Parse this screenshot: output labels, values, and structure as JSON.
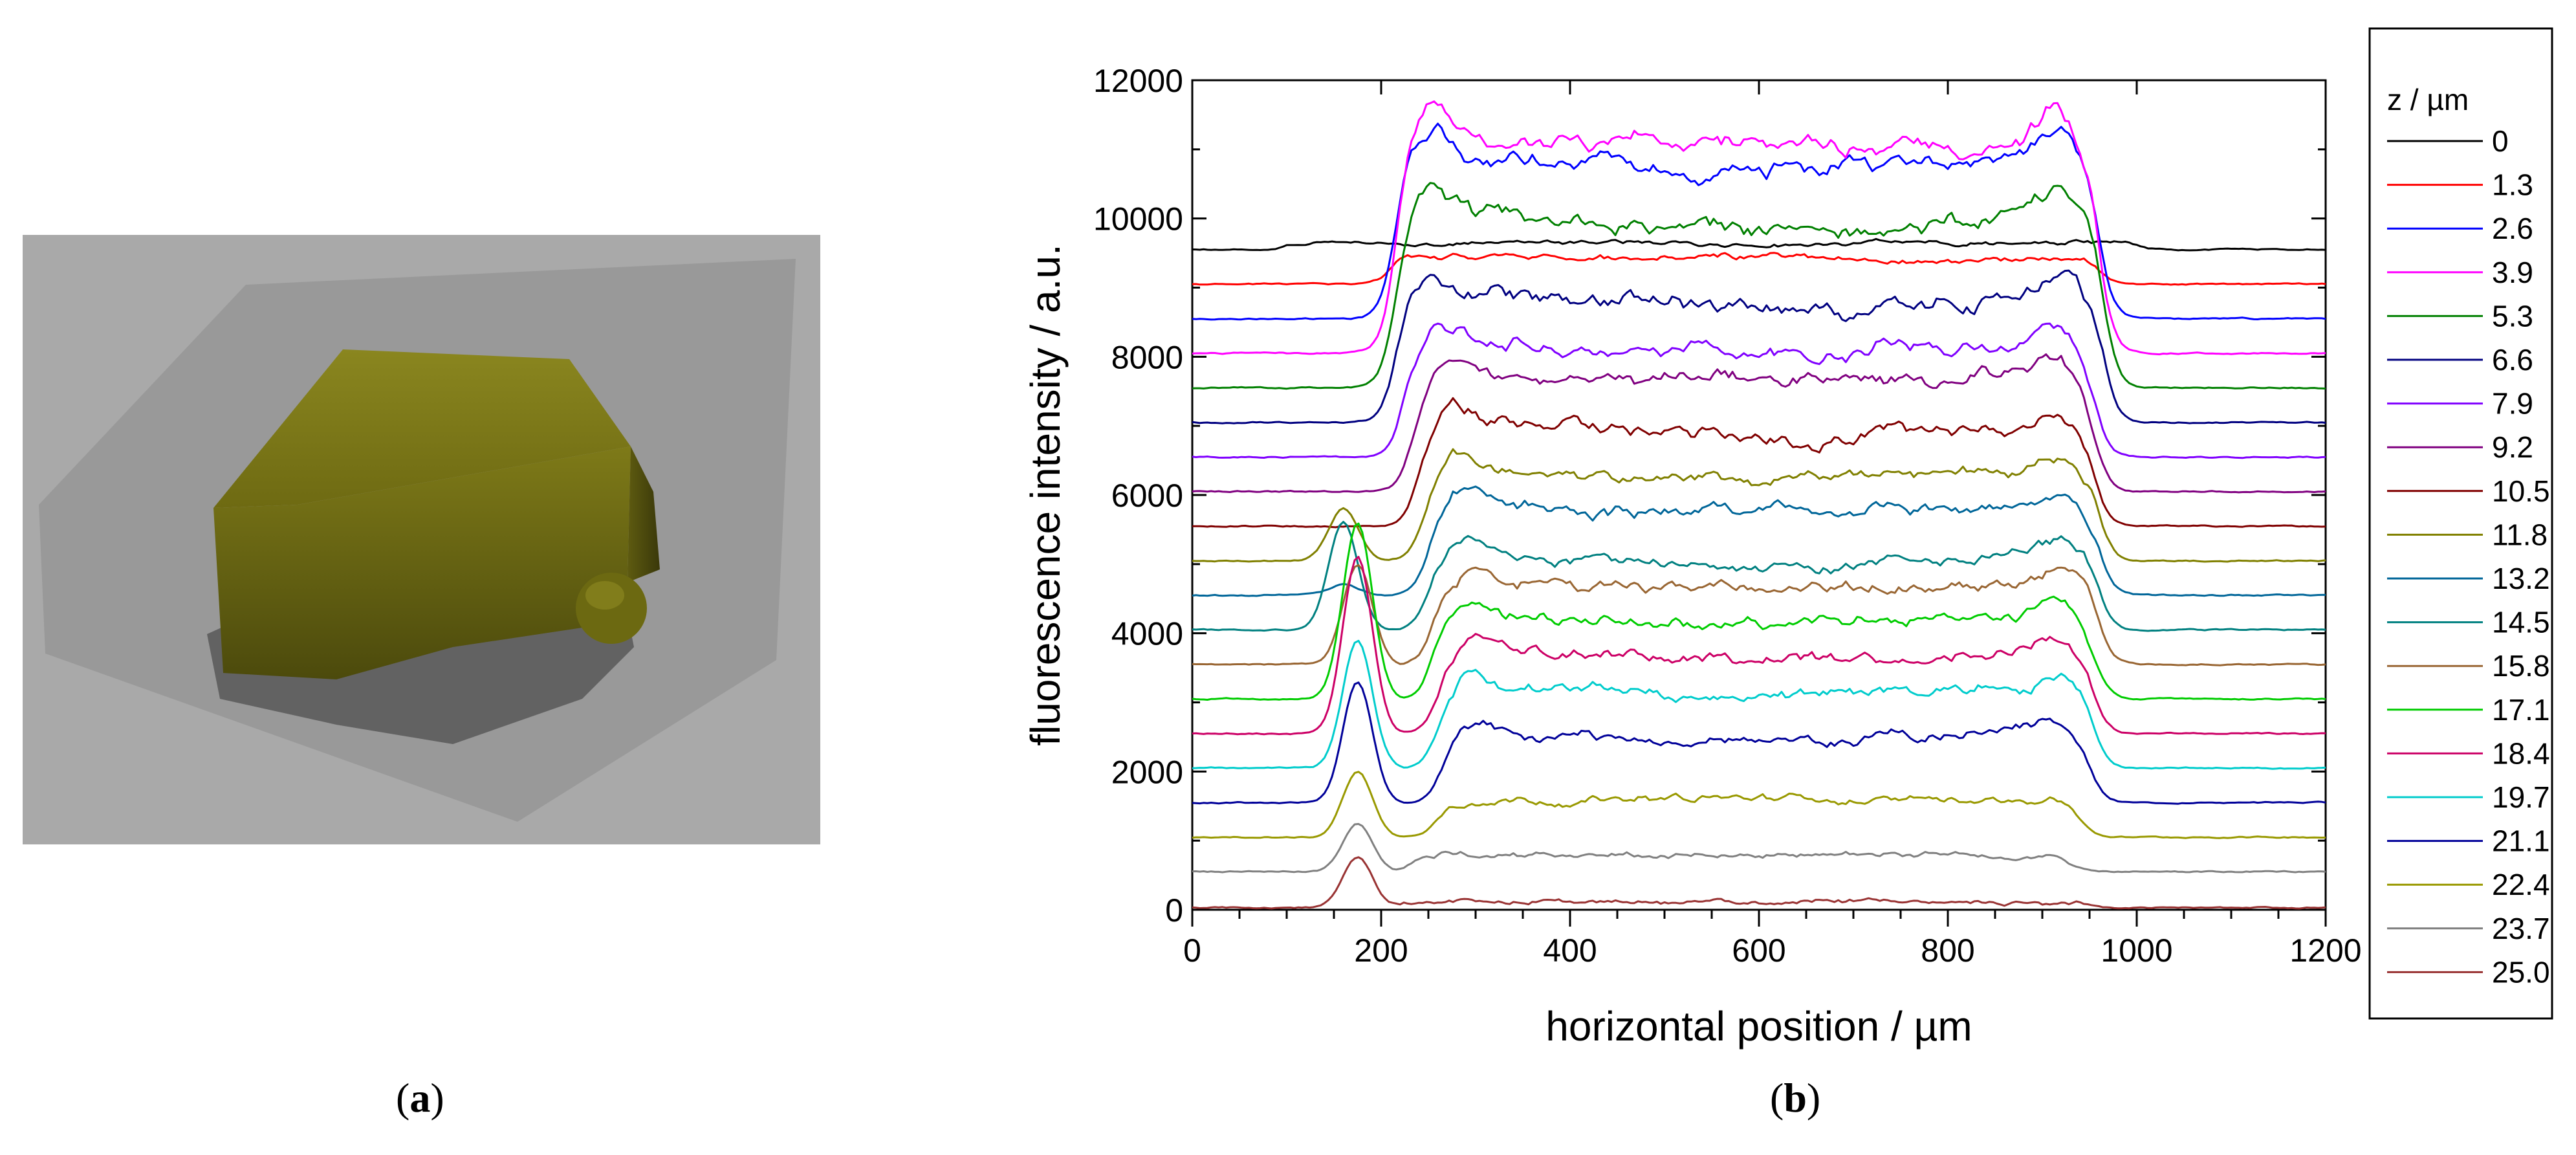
{
  "panel_a": {
    "label_open": "(",
    "label_letter": "a",
    "label_close": ")"
  },
  "panel_b": {
    "label_open": "(",
    "label_letter": "b",
    "label_close": ")"
  },
  "image": {
    "background_color": "#a9a9a9",
    "crystal_color": "#7e7a18"
  },
  "chart_data": {
    "type": "line",
    "xlabel": "horizontal position / µm",
    "ylabel": "fluorescence intensity / a.u.",
    "xlim": [
      0,
      1200
    ],
    "ylim": [
      0,
      12000
    ],
    "x_ticks": [
      0,
      200,
      400,
      600,
      800,
      1000,
      1200
    ],
    "y_ticks": [
      0,
      2000,
      4000,
      6000,
      8000,
      10000,
      12000
    ],
    "legend_title": "z / µm",
    "legend_placement": "right, outside plot",
    "grid": false,
    "series": [
      {
        "name": "0",
        "color": "#000000",
        "baseline": 9550,
        "amp": 100,
        "edges": [
          100,
          1000
        ],
        "dip": 0,
        "peak": null
      },
      {
        "name": "1.3",
        "color": "#ff0000",
        "baseline": 9050,
        "amp": 380,
        "edges": [
          210,
          960
        ],
        "dip": 0,
        "peak": null
      },
      {
        "name": "2.6",
        "color": "#0000ff",
        "baseline": 8550,
        "amp": 2350,
        "edges": [
          215,
          960
        ],
        "dip": 300,
        "peak": null
      },
      {
        "name": "3.9",
        "color": "#ff00ff",
        "baseline": 8050,
        "amp": 3050,
        "edges": [
          215,
          960
        ],
        "dip": 0,
        "peak": null
      },
      {
        "name": "5.3",
        "color": "#008000",
        "baseline": 7550,
        "amp": 2500,
        "edges": [
          215,
          965
        ],
        "dip": 400,
        "peak": null
      },
      {
        "name": "6.6",
        "color": "#000080",
        "baseline": 7050,
        "amp": 1900,
        "edges": [
          215,
          965
        ],
        "dip": 600,
        "peak": null
      },
      {
        "name": "7.9",
        "color": "#8000ff",
        "baseline": 6550,
        "amp": 1700,
        "edges": [
          225,
          955
        ],
        "dip": 400,
        "peak": null
      },
      {
        "name": "9.2",
        "color": "#800080",
        "baseline": 6050,
        "amp": 1700,
        "edges": [
          235,
          955
        ],
        "dip": 400,
        "peak": null
      },
      {
        "name": "10.5",
        "color": "#800000",
        "baseline": 5550,
        "amp": 1500,
        "edges": [
          240,
          955
        ],
        "dip": 500,
        "peak": null
      },
      {
        "name": "11.8",
        "color": "#808000",
        "baseline": 5050,
        "amp": 1300,
        "edges": [
          245,
          960
        ],
        "dip": 200,
        "peak": 5800
      },
      {
        "name": "13.2",
        "color": "#006699",
        "baseline": 4550,
        "amp": 1300,
        "edges": [
          250,
          960
        ],
        "dip": 200,
        "peak": 4700
      },
      {
        "name": "14.5",
        "color": "#008080",
        "baseline": 4050,
        "amp": 1100,
        "edges": [
          250,
          960
        ],
        "dip": 300,
        "peak": 5600
      },
      {
        "name": "15.8",
        "color": "#996633",
        "baseline": 3550,
        "amp": 1200,
        "edges": [
          255,
          960
        ],
        "dip": 200,
        "peak": 5000
      },
      {
        "name": "17.1",
        "color": "#00cc00",
        "baseline": 3050,
        "amp": 1200,
        "edges": [
          255,
          955
        ],
        "dip": 200,
        "peak": 5600
      },
      {
        "name": "18.4",
        "color": "#cc0066",
        "baseline": 2550,
        "amp": 1200,
        "edges": [
          260,
          955
        ],
        "dip": 200,
        "peak": 5100
      },
      {
        "name": "19.7",
        "color": "#00cccc",
        "baseline": 2050,
        "amp": 1200,
        "edges": [
          260,
          955
        ],
        "dip": 200,
        "peak": 3900
      },
      {
        "name": "21.1",
        "color": "#000099",
        "baseline": 1550,
        "amp": 1000,
        "edges": [
          265,
          950
        ],
        "dip": 200,
        "peak": 3300
      },
      {
        "name": "22.4",
        "color": "#999900",
        "baseline": 1050,
        "amp": 550,
        "edges": [
          260,
          940
        ],
        "dip": 0,
        "peak": 2000
      },
      {
        "name": "23.7",
        "color": "#808080",
        "baseline": 550,
        "amp": 250,
        "edges": [
          230,
          930
        ],
        "dip": 0,
        "peak": 1250
      },
      {
        "name": "25.0",
        "color": "#993333",
        "baseline": 30,
        "amp": 80,
        "edges": [
          200,
          950
        ],
        "dip": 0,
        "peak": 750
      }
    ]
  }
}
